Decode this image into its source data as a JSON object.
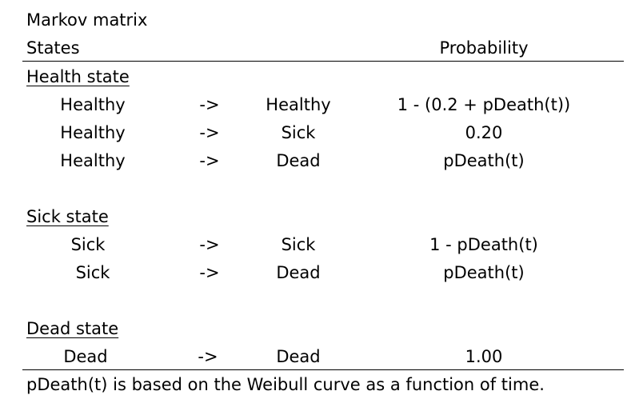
{
  "title": "Markov matrix",
  "header": {
    "states": "States",
    "probability": "Probability"
  },
  "sections": [
    {
      "heading": "Health state",
      "rows": [
        {
          "from": "Healthy",
          "arrow": "->",
          "to": "Healthy",
          "probability": "1 - (0.2 + pDeath(t))"
        },
        {
          "from": "Healthy",
          "arrow": "->",
          "to": "Sick",
          "probability": "0.20"
        },
        {
          "from": "Healthy",
          "arrow": "->",
          "to": "Dead",
          "probability": "pDeath(t)"
        }
      ]
    },
    {
      "heading": "Sick state",
      "rows": [
        {
          "from": "Sick",
          "arrow": "->",
          "to": "Sick",
          "probability": "1 - pDeath(t)"
        },
        {
          "from": "Sick",
          "arrow": "->",
          "to": "Dead",
          "probability": "pDeath(t)"
        }
      ]
    },
    {
      "heading": "Dead state",
      "rows": [
        {
          "from": "Dead",
          "arrow": "->",
          "to": "Dead",
          "probability": "1.00"
        }
      ]
    }
  ],
  "footnote": "pDeath(t) is based on the Weibull curve as a function of time."
}
